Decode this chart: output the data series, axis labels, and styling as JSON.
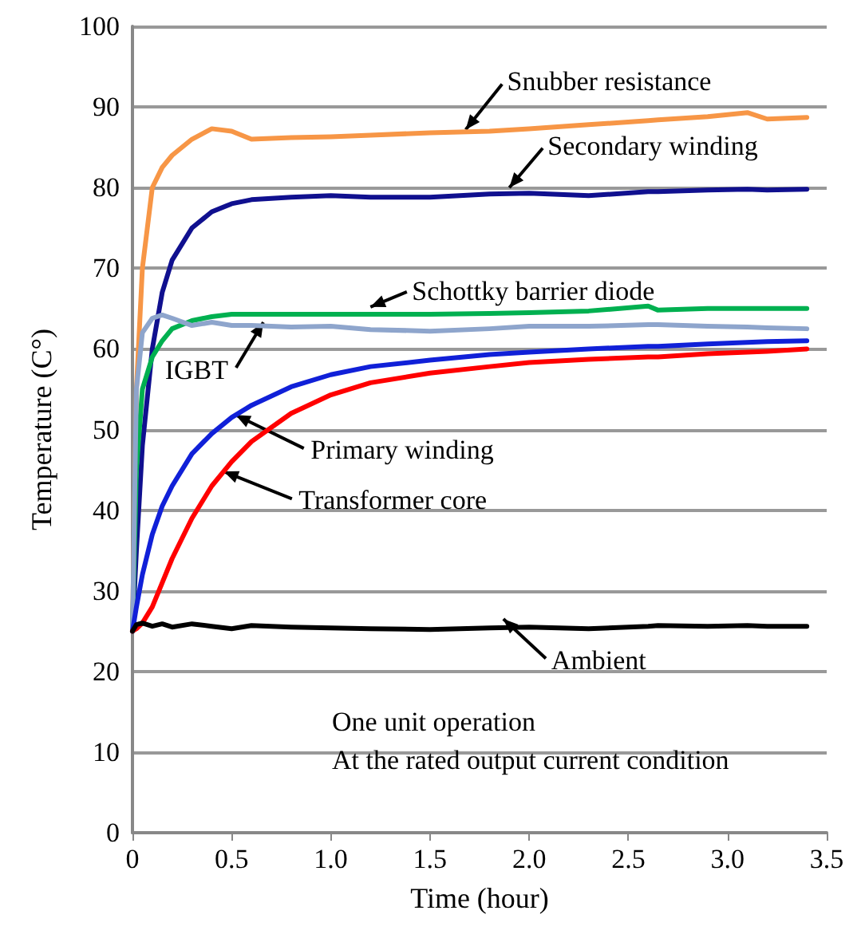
{
  "chart_data": {
    "type": "line",
    "xlabel": "Time (hour)",
    "ylabel": "Temperature (C°)",
    "x": [
      0,
      0.02,
      0.05,
      0.1,
      0.15,
      0.2,
      0.3,
      0.4,
      0.5,
      0.6,
      0.8,
      1.0,
      1.2,
      1.5,
      1.8,
      2.0,
      2.3,
      2.6,
      2.65,
      2.9,
      3.1,
      3.2,
      3.4
    ],
    "series": [
      {
        "color": "#f79646",
        "values": [
          25,
          55,
          70,
          80,
          82.5,
          84,
          86,
          87.3,
          87,
          86,
          86.2,
          86.3,
          86.5,
          86.8,
          87,
          87.3,
          87.8,
          88.3,
          88.4,
          88.8,
          89.3,
          88.5,
          88.7
        ]
      },
      {
        "color": "#10108f",
        "values": [
          25,
          35,
          48,
          60,
          67,
          71,
          75,
          77,
          78,
          78.5,
          78.8,
          79,
          78.8,
          78.8,
          79.2,
          79.3,
          79,
          79.5,
          79.5,
          79.7,
          79.8,
          79.7,
          79.8
        ]
      },
      {
        "color": "#00b050",
        "values": [
          25,
          45,
          55,
          59,
          61,
          62.5,
          63.5,
          64,
          64.3,
          64.3,
          64.3,
          64.3,
          64.3,
          64.3,
          64.4,
          64.5,
          64.7,
          65.3,
          64.8,
          65,
          65,
          65,
          65
        ]
      },
      {
        "color": "#8ea5cc",
        "values": [
          25,
          55,
          62,
          63.8,
          64.2,
          63.8,
          62.9,
          63.3,
          62.9,
          62.9,
          62.7,
          62.8,
          62.4,
          62.2,
          62.5,
          62.8,
          62.8,
          63,
          63,
          62.8,
          62.7,
          62.6,
          62.5
        ]
      },
      {
        "color": "#1020d8",
        "values": [
          25,
          28,
          32,
          37,
          40.5,
          43,
          47,
          49.5,
          51.5,
          53,
          55.3,
          56.8,
          57.8,
          58.6,
          59.3,
          59.6,
          60,
          60.3,
          60.3,
          60.6,
          60.8,
          60.9,
          61
        ]
      },
      {
        "color": "#ff0000",
        "values": [
          25,
          25.3,
          26,
          28,
          31,
          34,
          39,
          43,
          46,
          48.5,
          52,
          54.3,
          55.8,
          57,
          57.8,
          58.3,
          58.7,
          59,
          59,
          59.4,
          59.6,
          59.7,
          60
        ]
      },
      {
        "color": "#000000",
        "values": [
          25,
          25.8,
          26,
          25.6,
          25.9,
          25.5,
          25.9,
          25.6,
          25.3,
          25.7,
          25.5,
          25.4,
          25.3,
          25.2,
          25.4,
          25.5,
          25.3,
          25.6,
          25.7,
          25.6,
          25.7,
          25.6,
          25.6
        ]
      }
    ],
    "annotations": [
      {
        "text": "Snubber resistance",
        "x": 1.68,
        "y": 87.2
      },
      {
        "text": "Secondary winding",
        "x": 1.9,
        "y": 80
      },
      {
        "text": "Schottky barrier diode",
        "x": 1.2,
        "y": 65.2
      },
      {
        "text": "IGBT",
        "x": 0.66,
        "y": 63.3
      },
      {
        "text": "Primary winding",
        "x": 0.52,
        "y": 51.8
      },
      {
        "text": "Transformer core",
        "x": 0.46,
        "y": 44.8
      },
      {
        "text": "Ambient",
        "x": 1.87,
        "y": 26.5
      },
      "One unit operation",
      "At the rated output current condition"
    ],
    "xlim": [
      0,
      3.5
    ],
    "xticks": [
      0,
      0.5,
      {
        "value": 1,
        "label": "1.0"
      },
      1.5,
      {
        "value": 2,
        "label": "2.0"
      },
      2.5,
      {
        "value": 3,
        "label": "3.0"
      },
      3.5
    ],
    "ylim": [
      0,
      100
    ],
    "yticks": [
      0,
      10,
      20,
      30,
      40,
      50,
      60,
      70,
      80,
      90,
      100
    ],
    "grid": "y",
    "marker": "none",
    "line_style": "solid"
  }
}
